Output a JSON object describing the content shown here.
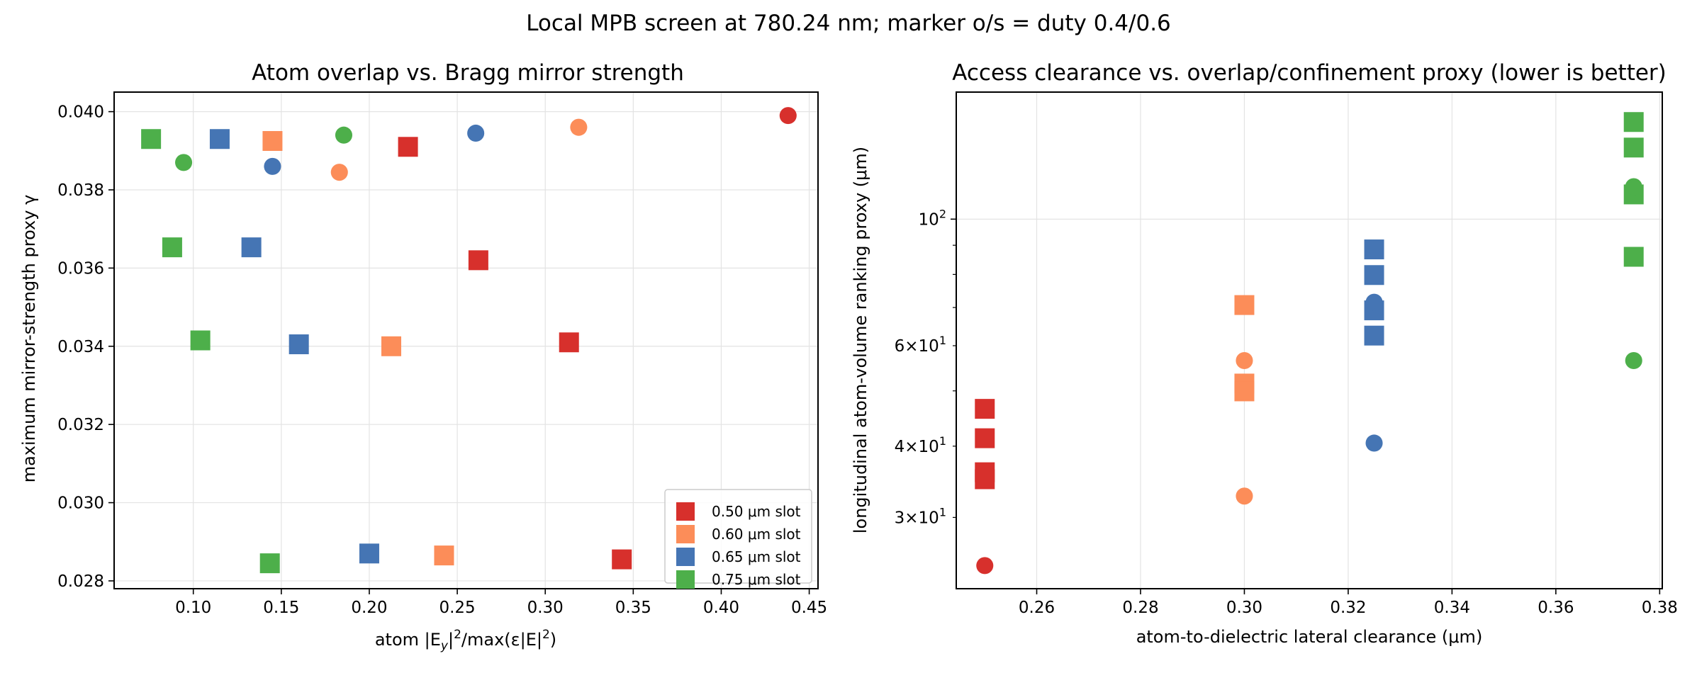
{
  "suptitle": "Local MPB screen at 780.24 nm; marker o/s = duty 0.4/0.6",
  "colors": {
    "0.50": "#d7302c",
    "0.60": "#fc8d59",
    "0.65": "#4575b4",
    "0.75": "#4daf4a"
  },
  "chart_data": [
    {
      "type": "scatter",
      "title": "Atom overlap vs. Bragg mirror strength",
      "xlabel_parts": [
        "atom |E",
        "y",
        "|",
        "2",
        "/max(ε|E|",
        "2",
        ")"
      ],
      "ylabel": "maximum mirror-strength proxy γ",
      "xlim": [
        0.055,
        0.455
      ],
      "ylim": [
        0.0278,
        0.0405
      ],
      "xticks": [
        0.1,
        0.15,
        0.2,
        0.25,
        0.3,
        0.35,
        0.4,
        0.45
      ],
      "xtick_labels": [
        "0.10",
        "0.15",
        "0.20",
        "0.25",
        "0.30",
        "0.35",
        "0.40",
        "0.45"
      ],
      "yticks": [
        0.028,
        0.03,
        0.032,
        0.034,
        0.036,
        0.038,
        0.04
      ],
      "ytick_labels": [
        "0.028",
        "0.030",
        "0.032",
        "0.034",
        "0.036",
        "0.038",
        "0.040"
      ],
      "grid": true,
      "legend": {
        "placement": "lower-right",
        "entries": [
          {
            "label": "0.50 μm slot",
            "color_key": "0.50"
          },
          {
            "label": "0.60 μm slot",
            "color_key": "0.60"
          },
          {
            "label": "0.65 μm slot",
            "color_key": "0.65"
          },
          {
            "label": "0.75 μm slot",
            "color_key": "0.75"
          }
        ]
      },
      "series": [
        {
          "slot": "0.50",
          "marker": "circle",
          "points": [
            [
              0.438,
              0.0399
            ]
          ]
        },
        {
          "slot": "0.50",
          "marker": "square",
          "points": [
            [
              0.222,
              0.0391
            ],
            [
              0.262,
              0.0362
            ],
            [
              0.3135,
              0.0341
            ],
            [
              0.3435,
              0.02855
            ]
          ]
        },
        {
          "slot": "0.60",
          "marker": "circle",
          "points": [
            [
              0.319,
              0.0396
            ],
            [
              0.183,
              0.03845
            ]
          ]
        },
        {
          "slot": "0.60",
          "marker": "square",
          "points": [
            [
              0.145,
              0.03925
            ],
            [
              0.2125,
              0.034
            ],
            [
              0.2425,
              0.02865
            ]
          ]
        },
        {
          "slot": "0.65",
          "marker": "circle",
          "points": [
            [
              0.2605,
              0.03945
            ],
            [
              0.145,
              0.0386
            ]
          ]
        },
        {
          "slot": "0.65",
          "marker": "square",
          "points": [
            [
              0.115,
              0.0393
            ],
            [
              0.133,
              0.03653
            ],
            [
              0.16,
              0.03405
            ],
            [
              0.2,
              0.0287
            ]
          ]
        },
        {
          "slot": "0.75",
          "marker": "circle",
          "points": [
            [
              0.1855,
              0.0394
            ],
            [
              0.0945,
              0.0387
            ]
          ]
        },
        {
          "slot": "0.75",
          "marker": "square",
          "points": [
            [
              0.076,
              0.0393
            ],
            [
              0.088,
              0.03653
            ],
            [
              0.104,
              0.03415
            ],
            [
              0.1435,
              0.02845
            ]
          ]
        }
      ]
    },
    {
      "type": "scatter",
      "title": "Access clearance vs. overlap/confinement proxy (lower is better)",
      "xlabel": "atom-to-dielectric lateral clearance (μm)",
      "ylabel": "longitudinal atom-volume ranking proxy (μm)",
      "yscale": "log",
      "xlim": [
        0.2445,
        0.3805
      ],
      "ylim": [
        22.5,
        167
      ],
      "xticks": [
        0.26,
        0.28,
        0.3,
        0.32,
        0.34,
        0.36,
        0.38
      ],
      "xtick_labels": [
        "0.26",
        "0.28",
        "0.30",
        "0.32",
        "0.34",
        "0.36",
        "0.38"
      ],
      "yticks_major": [
        100
      ],
      "yticks_minor": [
        30,
        40,
        60
      ],
      "yticks_minor_unlabeled": [
        50,
        70,
        80,
        90
      ],
      "ytick_labels": {
        "100": [
          "10",
          "2"
        ],
        "30": [
          "3×10",
          "1"
        ],
        "40": [
          "4×10",
          "1"
        ],
        "60": [
          "6×10",
          "1"
        ]
      },
      "grid": true,
      "series": [
        {
          "slot": "0.50",
          "marker": "square",
          "points": [
            [
              0.25,
              46.5
            ],
            [
              0.25,
              41.3
            ],
            [
              0.25,
              36.0
            ],
            [
              0.25,
              35.0
            ]
          ]
        },
        {
          "slot": "0.50",
          "marker": "circle",
          "points": [
            [
              0.25,
              24.7
            ]
          ]
        },
        {
          "slot": "0.60",
          "marker": "square",
          "points": [
            [
              0.3,
              70.7
            ],
            [
              0.3,
              51.5
            ],
            [
              0.3,
              49.9
            ]
          ]
        },
        {
          "slot": "0.60",
          "marker": "circle",
          "points": [
            [
              0.3,
              56.5
            ],
            [
              0.3,
              32.7
            ]
          ]
        },
        {
          "slot": "0.65",
          "marker": "square",
          "points": [
            [
              0.325,
              88.5
            ],
            [
              0.325,
              79.8
            ],
            [
              0.325,
              69.2
            ],
            [
              0.325,
              62.5
            ]
          ]
        },
        {
          "slot": "0.65",
          "marker": "circle",
          "points": [
            [
              0.325,
              71.5
            ],
            [
              0.325,
              40.5
            ]
          ]
        },
        {
          "slot": "0.75",
          "marker": "square",
          "points": [
            [
              0.375,
              148.0
            ],
            [
              0.375,
              133.5
            ],
            [
              0.375,
              110.5
            ],
            [
              0.375,
              85.9
            ]
          ]
        },
        {
          "slot": "0.75",
          "marker": "circle",
          "points": [
            [
              0.375,
              114.0
            ],
            [
              0.375,
              56.5
            ]
          ]
        }
      ]
    }
  ]
}
